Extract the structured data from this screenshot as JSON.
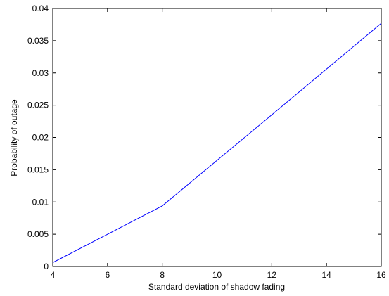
{
  "chart_data": {
    "type": "line",
    "title": "",
    "xlabel": "Standard deviation of shadow fading",
    "ylabel": "Probability of outage",
    "xlim": [
      4,
      16
    ],
    "ylim": [
      0,
      0.04
    ],
    "xticks": [
      4,
      6,
      8,
      10,
      12,
      14,
      16
    ],
    "xtick_labels": [
      "4",
      "6",
      "8",
      "10",
      "12",
      "14",
      "16"
    ],
    "yticks": [
      0,
      0.005,
      0.01,
      0.015,
      0.02,
      0.025,
      0.03,
      0.035,
      0.04
    ],
    "ytick_labels": [
      "0",
      "0.005",
      "0.01",
      "0.015",
      "0.02",
      "0.025",
      "0.03",
      "0.035",
      "0.04"
    ],
    "grid": false,
    "legend": "none",
    "series": [
      {
        "color": "#0000ff",
        "x": [
          4,
          8,
          12,
          16
        ],
        "y": [
          0.0006,
          0.0094,
          0.0235,
          0.0377
        ]
      }
    ]
  }
}
